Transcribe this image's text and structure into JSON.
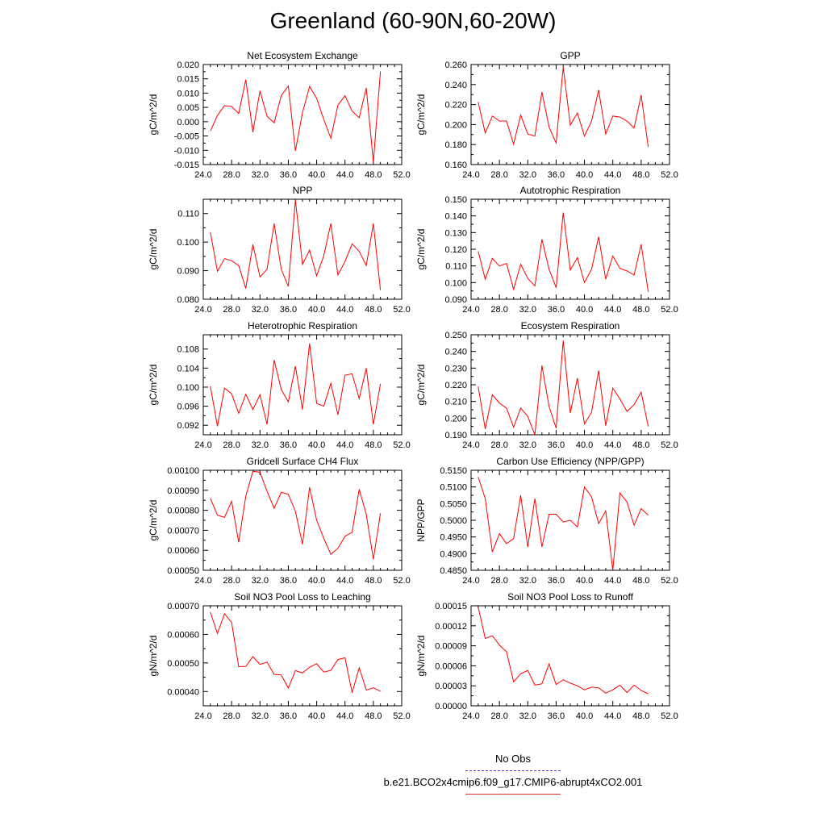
{
  "title": "Greenland (60-90N,60-20W)",
  "legend": {
    "obs_label": "No Obs",
    "run_label": "b.e21.BCO2x4cmip6.f09_g17.CMIP6-abrupt4xCO2.001",
    "obs_color": "#3b3bd9",
    "run_color": "#ff0000"
  },
  "chart_data": [
    {
      "type": "line",
      "title": "Net Ecosystem Exchange",
      "ylabel": "gC/m^2/d",
      "xlabel": "",
      "xlim": [
        24,
        52
      ],
      "xticks": [
        "24.0",
        "28.0",
        "32.0",
        "36.0",
        "40.0",
        "44.0",
        "48.0",
        "52.0"
      ],
      "ylim": [
        -0.015,
        0.02
      ],
      "yticks": [
        "-0.015",
        "-0.010",
        "-0.005",
        "0.000",
        "0.005",
        "0.010",
        "0.015",
        "0.020"
      ],
      "x": [
        25,
        26,
        27,
        28,
        29,
        30,
        31,
        32,
        33,
        34,
        35,
        36,
        37,
        38,
        39,
        40,
        41,
        42,
        43,
        44,
        45,
        46,
        47,
        48,
        49
      ],
      "values": [
        -0.0033,
        0.0022,
        0.0056,
        0.0053,
        0.0029,
        0.0147,
        -0.0037,
        0.0108,
        0.0019,
        -0.0004,
        0.0091,
        0.0125,
        -0.0102,
        0.0032,
        0.0123,
        0.0082,
        0.0008,
        -0.0058,
        0.0058,
        0.0091,
        0.0037,
        0.0014,
        0.0118,
        -0.0142,
        0.0176
      ]
    },
    {
      "type": "line",
      "title": "GPP",
      "ylabel": "gC/m^2/d",
      "xlabel": "",
      "xlim": [
        24,
        52
      ],
      "xticks": [
        "24.0",
        "28.0",
        "32.0",
        "36.0",
        "40.0",
        "44.0",
        "48.0",
        "52.0"
      ],
      "ylim": [
        0.16,
        0.26
      ],
      "yticks": [
        "0.160",
        "0.180",
        "0.200",
        "0.220",
        "0.240",
        "0.260"
      ],
      "x": [
        25,
        26,
        27,
        28,
        29,
        30,
        31,
        32,
        33,
        34,
        35,
        36,
        37,
        38,
        39,
        40,
        41,
        42,
        43,
        44,
        45,
        46,
        47,
        48,
        49
      ],
      "values": [
        0.2225,
        0.1915,
        0.2085,
        0.2035,
        0.2035,
        0.1805,
        0.2095,
        0.1905,
        0.1885,
        0.2325,
        0.1975,
        0.1815,
        0.2575,
        0.1995,
        0.2115,
        0.1885,
        0.2035,
        0.2345,
        0.1905,
        0.2085,
        0.2075,
        0.2035,
        0.1965,
        0.2295,
        0.1775
      ]
    },
    {
      "type": "line",
      "title": "NPP",
      "ylabel": "gC/m^2/d",
      "xlabel": "",
      "xlim": [
        24,
        52
      ],
      "xticks": [
        "24.0",
        "28.0",
        "32.0",
        "36.0",
        "40.0",
        "44.0",
        "48.0",
        "52.0"
      ],
      "ylim": [
        0.08,
        0.115
      ],
      "yticks": [
        "0.080",
        "0.090",
        "0.100",
        "0.110"
      ],
      "x": [
        25,
        26,
        27,
        28,
        29,
        30,
        31,
        32,
        33,
        34,
        35,
        36,
        37,
        38,
        39,
        40,
        41,
        42,
        43,
        44,
        45,
        46,
        47,
        48,
        49
      ],
      "values": [
        0.1035,
        0.0898,
        0.0942,
        0.0935,
        0.0918,
        0.0838,
        0.0992,
        0.0878,
        0.0905,
        0.1065,
        0.0905,
        0.0845,
        0.1148,
        0.0922,
        0.0972,
        0.0882,
        0.0952,
        0.1065,
        0.0885,
        0.0932,
        0.0994,
        0.0968,
        0.0918,
        0.1065,
        0.0832
      ]
    },
    {
      "type": "line",
      "title": "Autotrophic Respiration",
      "ylabel": "gC/m^2/d",
      "xlabel": "",
      "xlim": [
        24,
        52
      ],
      "xticks": [
        "24.0",
        "28.0",
        "32.0",
        "36.0",
        "40.0",
        "44.0",
        "48.0",
        "52.0"
      ],
      "ylim": [
        0.09,
        0.15
      ],
      "yticks": [
        "0.090",
        "0.100",
        "0.110",
        "0.120",
        "0.130",
        "0.140",
        "0.150"
      ],
      "x": [
        25,
        26,
        27,
        28,
        29,
        30,
        31,
        32,
        33,
        34,
        35,
        36,
        37,
        38,
        39,
        40,
        41,
        42,
        43,
        44,
        45,
        46,
        47,
        48,
        49
      ],
      "values": [
        0.1188,
        0.102,
        0.1145,
        0.11,
        0.1115,
        0.096,
        0.111,
        0.1025,
        0.098,
        0.126,
        0.108,
        0.097,
        0.142,
        0.1075,
        0.115,
        0.1,
        0.108,
        0.1275,
        0.102,
        0.116,
        0.1085,
        0.107,
        0.1045,
        0.123,
        0.0945
      ]
    },
    {
      "type": "line",
      "title": "Heterotrophic Respiration",
      "ylabel": "gC/m^2/d",
      "xlabel": "",
      "xlim": [
        24,
        52
      ],
      "xticks": [
        "24.0",
        "28.0",
        "32.0",
        "36.0",
        "40.0",
        "44.0",
        "48.0",
        "52.0"
      ],
      "ylim": [
        0.09,
        0.111
      ],
      "yticks": [
        "0.092",
        "0.096",
        "0.100",
        "0.104",
        "0.108"
      ],
      "x": [
        25,
        26,
        27,
        28,
        29,
        30,
        31,
        32,
        33,
        34,
        35,
        36,
        37,
        38,
        39,
        40,
        41,
        42,
        43,
        44,
        45,
        46,
        47,
        48,
        49
      ],
      "values": [
        0.1002,
        0.0918,
        0.0998,
        0.0986,
        0.0945,
        0.0985,
        0.0953,
        0.0984,
        0.0922,
        0.1057,
        0.0995,
        0.0969,
        0.1044,
        0.0953,
        0.1092,
        0.0966,
        0.096,
        0.1008,
        0.0942,
        0.1025,
        0.1028,
        0.0976,
        0.104,
        0.0922,
        0.1007
      ]
    },
    {
      "type": "line",
      "title": "Ecosystem Respiration",
      "ylabel": "gC/m^2/d",
      "xlabel": "",
      "xlim": [
        24,
        52
      ],
      "xticks": [
        "24.0",
        "28.0",
        "32.0",
        "36.0",
        "40.0",
        "44.0",
        "48.0",
        "52.0"
      ],
      "ylim": [
        0.19,
        0.25
      ],
      "yticks": [
        "0.190",
        "0.200",
        "0.210",
        "0.220",
        "0.230",
        "0.240",
        "0.250"
      ],
      "x": [
        25,
        26,
        27,
        28,
        29,
        30,
        31,
        32,
        33,
        34,
        35,
        36,
        37,
        38,
        39,
        40,
        41,
        42,
        43,
        44,
        45,
        46,
        47,
        48,
        49
      ],
      "values": [
        0.219,
        0.1935,
        0.214,
        0.209,
        0.206,
        0.1945,
        0.206,
        0.201,
        0.19,
        0.2315,
        0.207,
        0.194,
        0.2465,
        0.203,
        0.224,
        0.1965,
        0.2035,
        0.2285,
        0.1955,
        0.218,
        0.2115,
        0.204,
        0.208,
        0.2155,
        0.195
      ]
    },
    {
      "type": "line",
      "title": "Gridcell Surface CH4 Flux",
      "ylabel": "gC/m^2/d",
      "xlabel": "",
      "xlim": [
        24,
        52
      ],
      "xticks": [
        "24.0",
        "28.0",
        "32.0",
        "36.0",
        "40.0",
        "44.0",
        "48.0",
        "52.0"
      ],
      "ylim": [
        0.0005,
        0.001
      ],
      "yticks": [
        "0.00050",
        "0.00060",
        "0.00070",
        "0.00080",
        "0.00090",
        "0.00100"
      ],
      "x": [
        25,
        26,
        27,
        28,
        29,
        30,
        31,
        32,
        33,
        34,
        35,
        36,
        37,
        38,
        39,
        40,
        41,
        42,
        43,
        44,
        45,
        46,
        47,
        48,
        49
      ],
      "values": [
        0.00086,
        0.000775,
        0.000765,
        0.000845,
        0.00064,
        0.00087,
        0.000995,
        0.00099,
        0.000895,
        0.00081,
        0.00089,
        0.00088,
        0.000795,
        0.00063,
        0.000915,
        0.00075,
        0.00066,
        0.00058,
        0.00061,
        0.00067,
        0.00069,
        0.000905,
        0.00078,
        0.000555,
        0.000785
      ]
    },
    {
      "type": "line",
      "title": "Carbon Use Efficiency (NPP/GPP)",
      "ylabel": "NPP/GPP",
      "xlabel": "",
      "xlim": [
        24,
        52
      ],
      "xticks": [
        "24.0",
        "28.0",
        "32.0",
        "36.0",
        "40.0",
        "44.0",
        "48.0",
        "52.0"
      ],
      "ylim": [
        0.485,
        0.515
      ],
      "yticks": [
        "0.4850",
        "0.4900",
        "0.4950",
        "0.5000",
        "0.5050",
        "0.5100",
        "0.5150"
      ],
      "x": [
        25,
        26,
        27,
        28,
        29,
        30,
        31,
        32,
        33,
        34,
        35,
        36,
        37,
        38,
        39,
        40,
        41,
        42,
        43,
        44,
        45,
        46,
        47,
        48,
        49
      ],
      "values": [
        0.513,
        0.5065,
        0.4905,
        0.496,
        0.493,
        0.4945,
        0.5075,
        0.492,
        0.5065,
        0.492,
        0.5018,
        0.5018,
        0.4995,
        0.5,
        0.498,
        0.51,
        0.507,
        0.499,
        0.5028,
        0.485,
        0.5082,
        0.5055,
        0.4985,
        0.5035,
        0.5015
      ]
    },
    {
      "type": "line",
      "title": "Soil NO3 Pool Loss to Leaching",
      "ylabel": "gN/m^2/d",
      "xlabel": "",
      "xlim": [
        24,
        52
      ],
      "xticks": [
        "24.0",
        "28.0",
        "32.0",
        "36.0",
        "40.0",
        "44.0",
        "48.0",
        "52.0"
      ],
      "ylim": [
        0.00035,
        0.0007
      ],
      "yticks": [
        "0.00040",
        "0.00050",
        "0.00060",
        "0.00070"
      ],
      "x": [
        25,
        26,
        27,
        28,
        29,
        30,
        31,
        32,
        33,
        34,
        35,
        36,
        37,
        38,
        39,
        40,
        41,
        42,
        43,
        44,
        45,
        46,
        47,
        48,
        49
      ],
      "values": [
        0.000678,
        0.000603,
        0.000672,
        0.000642,
        0.000487,
        0.000488,
        0.000522,
        0.000495,
        0.000503,
        0.00046,
        0.000458,
        0.000412,
        0.000473,
        0.000465,
        0.000485,
        0.000497,
        0.000468,
        0.000474,
        0.000512,
        0.000518,
        0.000396,
        0.000483,
        0.000405,
        0.000413,
        0.000401
      ]
    },
    {
      "type": "line",
      "title": "Soil NO3 Pool Loss to Runoff",
      "ylabel": "gN/m^2/d",
      "xlabel": "",
      "xlim": [
        24,
        52
      ],
      "xticks": [
        "24.0",
        "28.0",
        "32.0",
        "36.0",
        "40.0",
        "44.0",
        "48.0",
        "52.0"
      ],
      "ylim": [
        0.0,
        0.00015
      ],
      "yticks": [
        "0.00000",
        "0.00003",
        "0.00006",
        "0.00009",
        "0.00012",
        "0.00015"
      ],
      "x": [
        25,
        26,
        27,
        28,
        29,
        30,
        31,
        32,
        33,
        34,
        35,
        36,
        37,
        38,
        39,
        40,
        41,
        42,
        43,
        44,
        45,
        46,
        47,
        48,
        49
      ],
      "values": [
        0.000148,
        0.000101,
        0.000105,
        9.1e-05,
        8.1e-05,
        3.6e-05,
        4.8e-05,
        5.3e-05,
        3.1e-05,
        3.3e-05,
        6.3e-05,
        3.2e-05,
        3.9e-05,
        3.4e-05,
        3e-05,
        2.4e-05,
        2.8e-05,
        2.7e-05,
        1.9e-05,
        2.4e-05,
        3.1e-05,
        2e-05,
        3.1e-05,
        2.3e-05,
        1.8e-05
      ]
    }
  ]
}
